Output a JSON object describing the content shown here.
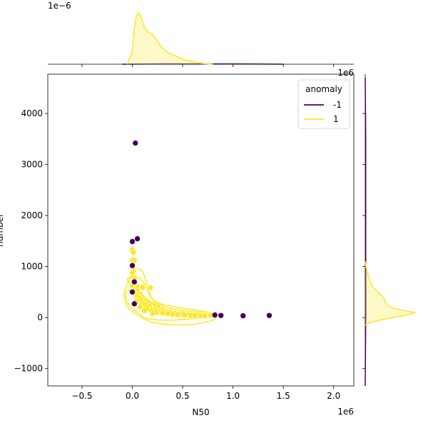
{
  "chart_data": {
    "type": "scatter",
    "xlabel": "N50",
    "ylabel": "number",
    "x_offset_text": "1e6",
    "x_multiplier": 1000000,
    "xlim": [
      -0.84,
      2.2
    ],
    "ylim": [
      -1340,
      4770
    ],
    "x_ticks": [
      -0.5,
      0.0,
      0.5,
      1.0,
      1.5,
      2.0
    ],
    "x_tick_labels": [
      "−0.5",
      "0.0",
      "0.5",
      "1.0",
      "1.5",
      "2.0"
    ],
    "y_ticks": [
      -1000,
      0,
      1000,
      2000,
      3000,
      4000
    ],
    "y_tick_labels": [
      "−1000",
      "0",
      "1000",
      "2000",
      "3000",
      "4000"
    ],
    "legend": {
      "title": "anomaly",
      "placement": "top-right",
      "entries": [
        {
          "label": "-1",
          "color": "#440154"
        },
        {
          "label": "1",
          "color": "#fde725"
        }
      ]
    },
    "series": [
      {
        "name": "-1",
        "color": "#440154",
        "points": [
          [
            0.03,
            3420
          ],
          [
            0.05,
            1545
          ],
          [
            0.0,
            1490
          ],
          [
            0.0,
            1020
          ],
          [
            0.02,
            700
          ],
          [
            0.0,
            500
          ],
          [
            0.02,
            270
          ],
          [
            0.82,
            50
          ],
          [
            0.88,
            40
          ],
          [
            1.1,
            35
          ],
          [
            1.36,
            40
          ]
        ]
      },
      {
        "name": "1",
        "color": "#fde725",
        "points": [
          [
            0.0,
            1330
          ],
          [
            0.01,
            1280
          ],
          [
            0.0,
            1130
          ],
          [
            0.02,
            1120
          ],
          [
            0.0,
            1000
          ],
          [
            0.01,
            910
          ],
          [
            0.0,
            870
          ],
          [
            0.01,
            800
          ],
          [
            0.02,
            760
          ],
          [
            0.01,
            700
          ],
          [
            0.03,
            640
          ],
          [
            0.0,
            620
          ],
          [
            0.04,
            580
          ],
          [
            0.06,
            600
          ],
          [
            0.1,
            590
          ],
          [
            0.18,
            580
          ],
          [
            0.02,
            540
          ],
          [
            0.05,
            520
          ],
          [
            0.03,
            480
          ],
          [
            0.06,
            460
          ],
          [
            0.08,
            450
          ],
          [
            0.05,
            420
          ],
          [
            0.1,
            400
          ],
          [
            0.07,
            380
          ],
          [
            0.12,
            360
          ],
          [
            0.09,
            340
          ],
          [
            0.14,
            330
          ],
          [
            0.04,
            320
          ],
          [
            0.16,
            300
          ],
          [
            0.1,
            280
          ],
          [
            0.2,
            260
          ],
          [
            0.13,
            250
          ],
          [
            0.23,
            240
          ],
          [
            0.17,
            220
          ],
          [
            0.08,
            210
          ],
          [
            0.26,
            200
          ],
          [
            0.15,
            180
          ],
          [
            0.22,
            160
          ],
          [
            0.3,
            150
          ],
          [
            0.19,
            140
          ],
          [
            0.12,
            130
          ],
          [
            0.27,
            120
          ],
          [
            0.34,
            110
          ],
          [
            0.24,
            100
          ],
          [
            0.38,
            100
          ],
          [
            0.3,
            90
          ],
          [
            0.42,
            85
          ],
          [
            0.2,
            80
          ],
          [
            0.46,
            80
          ],
          [
            0.35,
            75
          ],
          [
            0.5,
            70
          ],
          [
            0.4,
            65
          ],
          [
            0.55,
            60
          ],
          [
            0.45,
            60
          ],
          [
            0.6,
            55
          ],
          [
            0.52,
            50
          ],
          [
            0.65,
            55
          ],
          [
            0.58,
            45
          ],
          [
            0.7,
            50
          ],
          [
            0.62,
            40
          ],
          [
            0.75,
            40
          ],
          [
            0.68,
            35
          ],
          [
            0.78,
            45
          ],
          [
            0.72,
            30
          ]
        ]
      }
    ],
    "marginal_top": {
      "scale_label": "1e−6",
      "series": [
        {
          "name": "-1",
          "color": "#440154",
          "x": [
            -0.1,
            0.3,
            0.7,
            1.1,
            1.5
          ],
          "density": [
            0.0,
            0.005,
            0.005,
            0.005,
            0.0
          ]
        },
        {
          "name": "1",
          "color": "#fde725",
          "x": [
            -0.05,
            0.0,
            0.02,
            0.04,
            0.06,
            0.09,
            0.12,
            0.16,
            0.2,
            0.24,
            0.28,
            0.32,
            0.36,
            0.4,
            0.45,
            0.5,
            0.55,
            0.6,
            0.65,
            0.7,
            0.75,
            0.8
          ],
          "density": [
            0.0,
            0.25,
            0.7,
            0.95,
            1.0,
            0.9,
            0.72,
            0.62,
            0.58,
            0.48,
            0.36,
            0.28,
            0.22,
            0.19,
            0.14,
            0.1,
            0.07,
            0.05,
            0.03,
            0.015,
            0.005,
            0.0
          ]
        }
      ]
    },
    "marginal_right": {
      "series": [
        {
          "name": "-1",
          "color": "#440154",
          "y": [
            -1340,
            0,
            1500,
            3500,
            4700
          ],
          "density": [
            0.0,
            0.01,
            0.01,
            0.01,
            0.0
          ]
        },
        {
          "name": "1",
          "color": "#fde725",
          "y": [
            -150,
            -80,
            0,
            50,
            100,
            150,
            200,
            260,
            320,
            400,
            500,
            600,
            700,
            800,
            900,
            1000,
            1100
          ],
          "density": [
            0.0,
            0.15,
            0.55,
            0.85,
            1.0,
            0.7,
            0.5,
            0.42,
            0.4,
            0.36,
            0.25,
            0.15,
            0.1,
            0.07,
            0.04,
            0.015,
            0.0
          ]
        }
      ]
    },
    "contours": [
      {
        "series": "1",
        "color": "#fde725",
        "paths": [
          [
            [
              0.0,
              470
            ],
            [
              0.05,
              300
            ],
            [
              0.15,
              150
            ],
            [
              0.3,
              60
            ],
            [
              0.45,
              20
            ],
            [
              0.6,
              15
            ],
            [
              0.72,
              40
            ],
            [
              0.62,
              80
            ],
            [
              0.45,
              110
            ],
            [
              0.3,
              180
            ],
            [
              0.15,
              320
            ],
            [
              0.08,
              500
            ],
            [
              0.0,
              580
            ],
            [
              -0.03,
              520
            ],
            [
              0.0,
              470
            ]
          ],
          [
            [
              0.02,
              580
            ],
            [
              -0.05,
              720
            ],
            [
              0.0,
              820
            ],
            [
              0.1,
              720
            ],
            [
              0.18,
              420
            ],
            [
              0.3,
              230
            ],
            [
              0.5,
              140
            ],
            [
              0.7,
              100
            ],
            [
              0.78,
              40
            ],
            [
              0.6,
              -20
            ],
            [
              0.35,
              -50
            ],
            [
              0.15,
              -20
            ],
            [
              0.05,
              100
            ],
            [
              -0.05,
              300
            ],
            [
              -0.06,
              500
            ],
            [
              0.02,
              580
            ]
          ],
          [
            [
              -0.03,
              730
            ],
            [
              -0.08,
              480
            ],
            [
              -0.05,
              220
            ],
            [
              0.05,
              50
            ],
            [
              0.2,
              -90
            ],
            [
              0.4,
              -140
            ],
            [
              0.65,
              -120
            ],
            [
              0.82,
              -30
            ],
            [
              0.8,
              80
            ],
            [
              0.65,
              140
            ],
            [
              0.45,
              200
            ],
            [
              0.3,
              260
            ],
            [
              0.2,
              360
            ],
            [
              0.15,
              620
            ],
            [
              0.1,
              900
            ],
            [
              0.02,
              950
            ],
            [
              -0.03,
              730
            ]
          ]
        ]
      }
    ]
  }
}
